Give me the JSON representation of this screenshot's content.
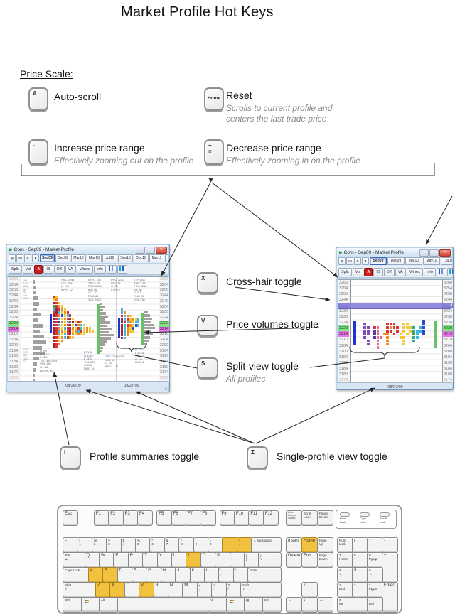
{
  "title": "Market Profile Hot Keys",
  "sections": {
    "price_scale": {
      "heading": "Price Scale:",
      "items": [
        {
          "key_lines": "A",
          "label": "Auto-scroll",
          "note": ""
        },
        {
          "key_lines": "Home",
          "label": "Reset",
          "note": "Scrolls to current profile and\ncenters the last trade price"
        },
        {
          "key_lines": "-\n_",
          "label": "Increase price range",
          "note": "Effectively zooming out on the profile"
        },
        {
          "key_lines": "+\n=",
          "label": "Decrease price range",
          "note": "Effectively zooming in on the profile"
        }
      ]
    },
    "view_toggles": [
      {
        "key_lines": "X",
        "label": "Cross-hair toggle",
        "note": ""
      },
      {
        "key_lines": "V",
        "label": "Price volumes toggle",
        "note": ""
      },
      {
        "key_lines": "S",
        "label": "Split-view toggle",
        "note": "All profiles"
      }
    ],
    "bottom_toggles": [
      {
        "key_lines": "I",
        "label": "Profile summaries toggle"
      },
      {
        "key_lines": "Z",
        "label": "Single-profile view toggle"
      }
    ]
  },
  "colors": {
    "green_row": "#86e086",
    "magenta_row": "#e87ae8",
    "crosshair": "#837ad8",
    "key_highlight": "#f2c13e",
    "bar_blue": "#2233cc",
    "bar_green": "#6abf69"
  },
  "tpo_colors": {
    "m": "#9a2038",
    "r": "#d93030",
    "o": "#f08a20",
    "y": "#f2c830",
    "c": "#38b8e0",
    "b": "#2848c8",
    "g": "#38a048",
    "p": "#8048b8",
    "d": "#5838a0",
    "k": "#e06890",
    "t": "#28a888"
  },
  "windows": {
    "left": {
      "title": "Corn - Sep09 - Market Profile",
      "tab_icons": [
        "⊞",
        "SP",
        "P",
        "▼"
      ],
      "tabs": [
        "Sep09",
        "Dec09",
        "Mar10",
        "May10",
        "Jul10",
        "Sep10",
        "Dec10",
        "Mar11",
        "Ma"
      ],
      "selected_tab": "Sep09",
      "tab_arrows": [
        "◂",
        "▸"
      ],
      "toolbar": [
        "Split",
        "Vol",
        "A",
        "IB",
        "Off",
        "VA",
        "Vlines",
        "Info"
      ],
      "prices": [
        "3260",
        "3254",
        "3250",
        "3244",
        "3240",
        "3234",
        "3230",
        "3224",
        "3220",
        "3214",
        "3210",
        "3204",
        "3200",
        "3194",
        "3190",
        "3184",
        "3180",
        "3174",
        "3170"
      ],
      "price_highlights": {
        "green": "3220",
        "magenta": "3214"
      },
      "dates": [
        "08/26/09",
        "08/27/09"
      ],
      "summary_top": [
        "199",
        "0.14",
        "3262",
        "46",
        "79",
        "148",
        "2928"
      ],
      "summary_bottom": [
        "3420",
        "2178",
        "980",
        "-101",
        "42"
      ],
      "stats_top": [
        [
          "PRC 3254",
          "VOL 708",
          "O  -92",
          "xTPO 12"
        ],
        [
          "xTPO 150",
          "TPF 0.28",
          "POC 3254",
          "IBR 16",
          "VLT 10",
          "RNG 60",
          "VOL 2928"
        ],
        [
          "PRC 3220",
          "VOL 78",
          "O  36",
          "xTPO 7"
        ],
        [
          "xTPO 84",
          "TPF 0.33",
          "POC 3216",
          "IBF ae",
          "VLT 4",
          "RNG 28",
          "VOL 338"
        ]
      ],
      "stats_bottom": [
        [
          "O 3%",
          "H 3212",
          "L 3194",
          "TPO x@3204",
          "VOL 159",
          "O  -38",
          "BA 99 - 80"
        ],
        [
          "ΣPV 6",
          "H 3210",
          "L 3194",
          "VOL 607",
          "O 159",
          "RNG 14"
        ],
        [
          "TPO C4@3220",
          "VOL 52",
          "O 16",
          "BA 21 - 21"
        ],
        [
          "H 3224",
          "L 3216",
          "VOL 78",
          "O 1%",
          "RNG 8"
        ]
      ],
      "profiles": [
        [
          "ry",
          "yo",
          "mry",
          "groy",
          "cmroy",
          "rmcyor",
          "mrobycr",
          "mrcyormy",
          "mrboycrmyro",
          "mrcyormybocy",
          "mroycrmoyrcyoy",
          "mrcoyrmyocryoyy",
          "mroycrmoyoyy",
          "mryocroy",
          "mryo",
          "mro",
          "mr"
        ],
        [
          "c",
          "co",
          "rcoy",
          "mcryoyc",
          "mrcoycc",
          "mcroybc",
          "mcoyb",
          "mcoyy",
          "mco",
          "mc"
        ]
      ],
      "histograms": [
        [
          2,
          4,
          3,
          6,
          8,
          5,
          10,
          7,
          13,
          9,
          15,
          18,
          12,
          16,
          8,
          5,
          3,
          2,
          2
        ],
        [
          4,
          7,
          5,
          9,
          12,
          8,
          15,
          11,
          18,
          14,
          20,
          16,
          11,
          8,
          5,
          3
        ],
        [
          5,
          8,
          11,
          9,
          14,
          15,
          10,
          12,
          8,
          6,
          4
        ]
      ]
    },
    "right": {
      "title": "Corn - Sep09 - Market Profile",
      "tab_icons": [
        "⊞",
        "SP",
        "P",
        "▼"
      ],
      "tabs": [
        "Sep09",
        "Dec09",
        "Mar10",
        "May10",
        "Jul10"
      ],
      "selected_tab": "Sep09",
      "tab_arrows": [
        "◂",
        "▸"
      ],
      "toolbar": [
        "Split",
        "Vol",
        "A",
        "IB",
        "Off",
        "VA",
        "Vlines",
        "Info"
      ],
      "prices": [
        "3260",
        "3254",
        "3250",
        "3244",
        "3240",
        "3234",
        "3230",
        "3224",
        "3220",
        "3214",
        "3210",
        "3204",
        "3200",
        "3194",
        "3190",
        "3184",
        "3180",
        "3174"
      ],
      "price_highlights": {
        "green": "3220",
        "magenta": "3214",
        "crosshair": "3240"
      },
      "dates": [
        "08/27/09"
      ],
      "summary_top": [],
      "summary_bottom": [],
      "stats_top": [],
      "stats_bottom": [],
      "profiles": [
        [
          "....................b",
          "..p......rrr..yy....b",
          "..pp.rk..rorr.yyyt.cb",
          "..pp.dk..rr.r.y.ytccb",
          "..pp.dk.oo.r.y.y.gc.b",
          "..p..dkk.o...yy..tc..",
          "...p..k..o....y..t...",
          "...p..k..o....y......",
          "......k.............."
        ]
      ],
      "histograms": []
    }
  },
  "keyboard": {
    "leds": [
      "Num\nLock",
      "Caps\nLock",
      "Scroll\nLock"
    ],
    "main_rows": [
      [
        {
          "t": "Esc"
        },
        {
          "t": "F1",
          "g": 1.15
        },
        {
          "t": "F2"
        },
        {
          "t": "F3"
        },
        {
          "t": "F4"
        },
        {
          "t": "F5",
          "g": 0.33
        },
        {
          "t": "F6"
        },
        {
          "t": "F7"
        },
        {
          "t": "F8"
        },
        {
          "t": "F9",
          "g": 0.33
        },
        {
          "t": "F10"
        },
        {
          "t": "F11"
        },
        {
          "t": "F12"
        }
      ],
      [
        {
          "t": "~\n`"
        },
        {
          "t": "!\n1"
        },
        {
          "t": "@\n2"
        },
        {
          "t": "#\n3"
        },
        {
          "t": "$\n4"
        },
        {
          "t": "%\n5"
        },
        {
          "t": "^\n6"
        },
        {
          "t": "&\n7"
        },
        {
          "t": "*\n8"
        },
        {
          "t": "(\n9"
        },
        {
          "t": ")\n0"
        },
        {
          "t": "_\n-",
          "h": 1
        },
        {
          "t": "+\n=",
          "h": 1
        },
        {
          "t": "←Backspace",
          "u": 2,
          "s": 1
        }
      ],
      [
        {
          "t": "Tab\n⇆",
          "u": 1.5
        },
        {
          "t": "Q"
        },
        {
          "t": "W"
        },
        {
          "t": "E"
        },
        {
          "t": "R"
        },
        {
          "t": "T"
        },
        {
          "t": "Y"
        },
        {
          "t": "U"
        },
        {
          "t": "I",
          "h": 1
        },
        {
          "t": "O"
        },
        {
          "t": "P"
        },
        {
          "t": "{\n["
        },
        {
          "t": "}\n]"
        },
        {
          "t": "|\n\\",
          "u": 1.5
        }
      ],
      [
        {
          "t": "Caps Lock",
          "u": 1.75,
          "s": 1
        },
        {
          "t": "A",
          "h": 1
        },
        {
          "t": "S",
          "h": 1
        },
        {
          "t": "D"
        },
        {
          "t": "F"
        },
        {
          "t": "G"
        },
        {
          "t": "H"
        },
        {
          "t": "J"
        },
        {
          "t": "K"
        },
        {
          "t": "L"
        },
        {
          "t": ":\n;"
        },
        {
          "t": "\"\n'"
        },
        {
          "t": "Enter",
          "u": 2.25,
          "s": 1
        }
      ],
      [
        {
          "t": "Shift\n⇧",
          "u": 2.25
        },
        {
          "t": "Z",
          "h": 1
        },
        {
          "t": "X",
          "h": 1
        },
        {
          "t": "C"
        },
        {
          "t": "V",
          "h": 1
        },
        {
          "t": "B"
        },
        {
          "t": "N"
        },
        {
          "t": "M"
        },
        {
          "t": "<\n,"
        },
        {
          "t": ">\n."
        },
        {
          "t": "?\n/"
        },
        {
          "t": "Shift\n⇧",
          "u": 2.75
        }
      ],
      [
        {
          "t": "Ctrl",
          "u": 1.25,
          "s": 1
        },
        {
          "t": "",
          "u": 1.25,
          "icon": "win"
        },
        {
          "t": "Alt",
          "u": 1.25,
          "s": 1
        },
        {
          "t": "",
          "u": 6.25
        },
        {
          "t": "Alt",
          "u": 1.25,
          "s": 1
        },
        {
          "t": "",
          "u": 1.25,
          "icon": "win"
        },
        {
          "t": "▤",
          "u": 1.25,
          "s": 1
        },
        {
          "t": "Ctrl",
          "u": 1.25,
          "s": 1
        }
      ]
    ],
    "sys_cluster": [
      "Print\nScreen\nSysRq",
      "Scroll\nLock",
      "Pause\nBreak"
    ],
    "nav_rows": [
      [
        {
          "t": "Insert"
        },
        {
          "t": "Home",
          "h": 1
        },
        {
          "t": "Page\nUp"
        }
      ],
      [
        {
          "t": "Delete"
        },
        {
          "t": "End"
        },
        {
          "t": "Page\nDown"
        }
      ]
    ],
    "arrow_keys": [
      "↑",
      "←",
      "↓",
      "→"
    ],
    "numpad": [
      {
        "t": "Num\nLock",
        "c": 0,
        "r": 0
      },
      {
        "t": "/",
        "c": 1,
        "r": 0
      },
      {
        "t": "*",
        "c": 2,
        "r": 0
      },
      {
        "t": "-",
        "c": 3,
        "r": 0
      },
      {
        "t": "7\nHome",
        "c": 0,
        "r": 1
      },
      {
        "t": "8\n↑",
        "c": 1,
        "r": 1
      },
      {
        "t": "9\nPgUp",
        "c": 2,
        "r": 1
      },
      {
        "t": "+",
        "c": 3,
        "r": 1,
        "rs": 2
      },
      {
        "t": "4\n←",
        "c": 0,
        "r": 2
      },
      {
        "t": "5",
        "c": 1,
        "r": 2
      },
      {
        "t": "6\n→",
        "c": 2,
        "r": 2
      },
      {
        "t": "1\nEnd",
        "c": 0,
        "r": 3
      },
      {
        "t": "2\n↓",
        "c": 1,
        "r": 3
      },
      {
        "t": "3\nPgDn",
        "c": 2,
        "r": 3
      },
      {
        "t": "Enter",
        "c": 3,
        "r": 3,
        "rs": 2
      },
      {
        "t": "0\nIns",
        "c": 0,
        "r": 4,
        "cs": 2
      },
      {
        "t": ".\nDel",
        "c": 2,
        "r": 4
      }
    ]
  }
}
